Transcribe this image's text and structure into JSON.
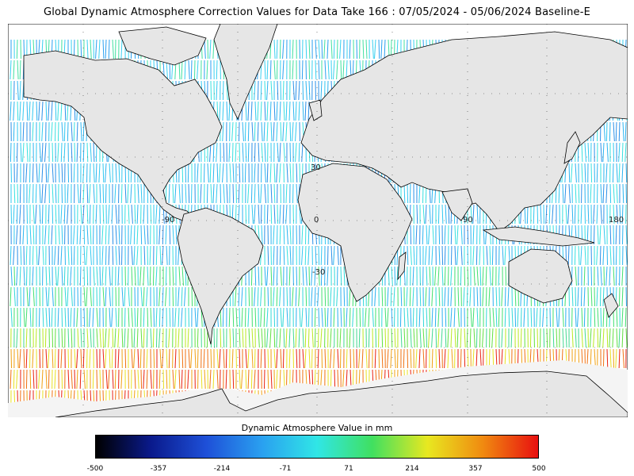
{
  "title": "Global Dynamic Atmosphere Correction Values for Data Take 166 : 07/05/2024 - 05/06/2024 Baseline-E",
  "map": {
    "lon_labels": [
      "-90",
      "0",
      "90",
      "180"
    ],
    "lat_labels": [
      "30",
      "-30"
    ],
    "land_color": "#e6e6e6",
    "ocean_background": "#ffffff"
  },
  "legend": {
    "title": "Dynamic Atmosphere Value in mm",
    "min": -500,
    "max": 500,
    "ticks": [
      "-500",
      "-357",
      "-214",
      "-71",
      "71",
      "214",
      "357",
      "500"
    ],
    "colors": [
      "#000000",
      "#0a1a8c",
      "#1e50d8",
      "#2aa0f0",
      "#30e6e6",
      "#40e060",
      "#e8e820",
      "#f08a10",
      "#e81010"
    ]
  }
}
